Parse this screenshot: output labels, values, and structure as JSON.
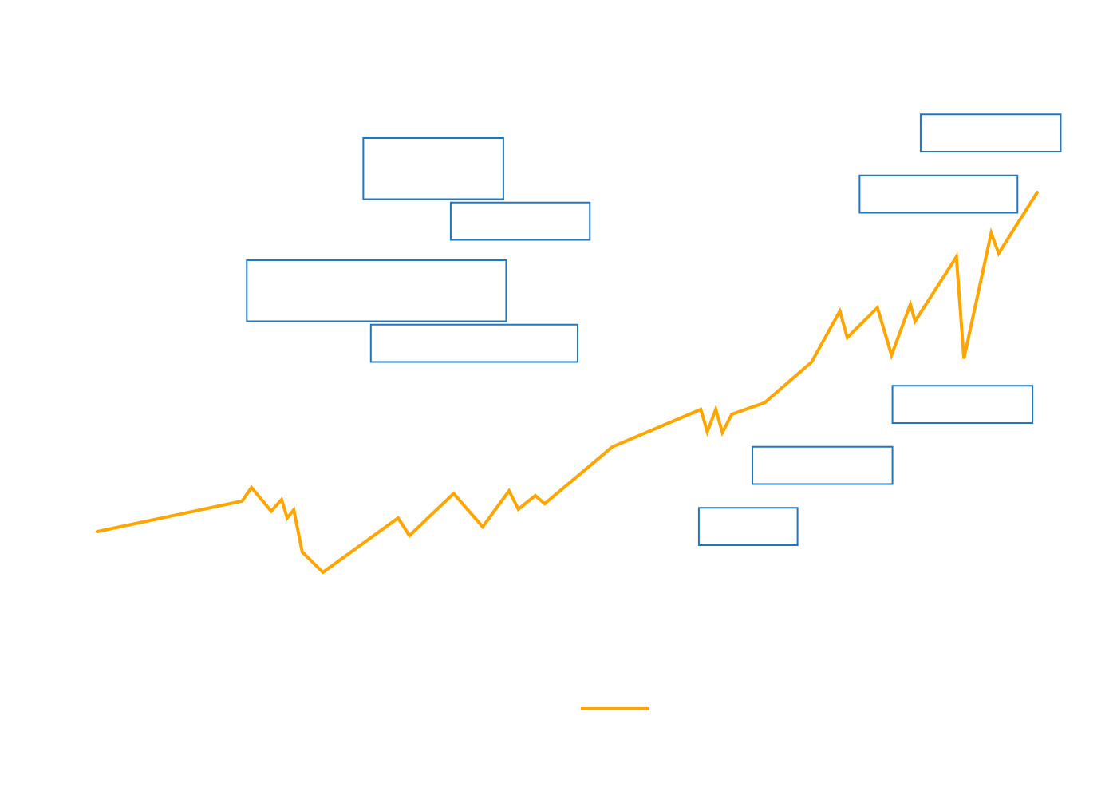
{
  "chart_data": {
    "type": "line",
    "title": "",
    "xlabel": "",
    "ylabel": "",
    "grid": false,
    "axes_visible": false,
    "legend_position": "bottom-center",
    "colors": {
      "series": "#ffa500",
      "annotation_border": "#1f77c0",
      "background": "#ffffff"
    },
    "series": [
      {
        "values": [
          [
            0.0,
            24.0
          ],
          [
            15.4,
            28.5
          ],
          [
            16.4,
            30.5
          ],
          [
            18.5,
            27.0
          ],
          [
            19.6,
            28.7
          ],
          [
            20.2,
            26.0
          ],
          [
            20.9,
            27.2
          ],
          [
            21.8,
            21.0
          ],
          [
            24.0,
            18.0
          ],
          [
            32.0,
            26.0
          ],
          [
            33.2,
            23.4
          ],
          [
            37.9,
            29.6
          ],
          [
            41.0,
            24.7
          ],
          [
            43.8,
            30.0
          ],
          [
            44.8,
            27.3
          ],
          [
            46.6,
            29.3
          ],
          [
            47.6,
            28.1
          ],
          [
            54.8,
            36.5
          ],
          [
            64.2,
            42.0
          ],
          [
            64.9,
            38.7
          ],
          [
            65.8,
            42.0
          ],
          [
            66.5,
            38.6
          ],
          [
            67.5,
            41.3
          ],
          [
            71.0,
            43.0
          ],
          [
            76.0,
            49.0
          ],
          [
            79.0,
            56.5
          ],
          [
            79.8,
            52.6
          ],
          [
            83.0,
            57.0
          ],
          [
            84.5,
            50.0
          ],
          [
            86.5,
            57.5
          ],
          [
            87.0,
            55.0
          ],
          [
            91.4,
            64.5
          ],
          [
            92.2,
            49.5
          ],
          [
            95.1,
            68.0
          ],
          [
            95.9,
            65.0
          ],
          [
            100.0,
            74.0
          ]
        ]
      }
    ],
    "annotations": [
      {
        "text": "",
        "x0": 28.3,
        "y0": 73.0,
        "x1": 43.2,
        "y1": 82.0
      },
      {
        "text": "",
        "x0": 37.6,
        "y0": 67.0,
        "x1": 52.4,
        "y1": 72.5
      },
      {
        "text": "",
        "x0": 15.9,
        "y0": 55.0,
        "x1": 43.5,
        "y1": 64.0
      },
      {
        "text": "",
        "x0": 29.1,
        "y0": 49.0,
        "x1": 51.1,
        "y1": 54.5
      },
      {
        "text": "",
        "x0": 87.6,
        "y0": 80.0,
        "x1": 102.5,
        "y1": 85.5
      },
      {
        "text": "",
        "x0": 81.1,
        "y0": 71.0,
        "x1": 97.9,
        "y1": 76.5
      },
      {
        "text": "",
        "x0": 84.6,
        "y0": 40.0,
        "x1": 99.5,
        "y1": 45.5
      },
      {
        "text": "",
        "x0": 69.7,
        "y0": 31.0,
        "x1": 84.6,
        "y1": 36.5
      },
      {
        "text": "",
        "x0": 64.0,
        "y0": 22.0,
        "x1": 74.5,
        "y1": 27.5
      }
    ],
    "xlim": [
      0,
      100
    ],
    "ylim": [
      0,
      100
    ]
  }
}
